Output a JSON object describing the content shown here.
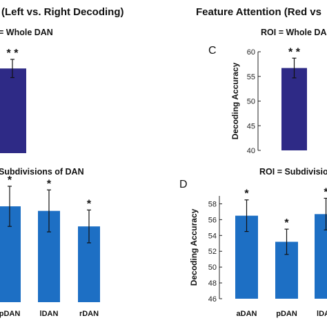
{
  "figure": {
    "left_title": "(Left vs. Right Decoding)",
    "right_title": "Feature Attention (Red vs"
  },
  "colors": {
    "dark_bar": "#2e2a86",
    "blue_bar": "#1d6fc4",
    "error": "#111111"
  },
  "chart_data": [
    {
      "id": "A",
      "type": "bar",
      "panel_label": "",
      "subtitle": "= Whole DAN",
      "ylabel": "",
      "yticks": [],
      "ylim": [
        40,
        60
      ],
      "categories": [
        ""
      ],
      "series": [
        {
          "values": [
            56.7
          ],
          "errors": [
            1.8
          ],
          "markers": [
            "* *"
          ]
        }
      ],
      "color": "#2e2a86"
    },
    {
      "id": "B",
      "type": "bar",
      "panel_label": "",
      "subtitle": "Subdivisions of DAN",
      "ylabel": "",
      "yticks": [],
      "ylim": [
        46,
        59
      ],
      "categories": [
        "pDAN",
        "lDAN",
        "rDAN"
      ],
      "series": [
        {
          "values": [
            56.5,
            56.0,
            54.3
          ],
          "errors": [
            2.2,
            2.3,
            1.8
          ],
          "markers": [
            "*",
            "*",
            "*"
          ]
        }
      ],
      "color": "#1d6fc4"
    },
    {
      "id": "C",
      "type": "bar",
      "panel_label": "C",
      "subtitle": "ROI = Whole DA",
      "ylabel": "Decoding Accuracy",
      "yticks": [
        "40",
        "45",
        "50",
        "55",
        "60"
      ],
      "ylim": [
        40,
        60
      ],
      "categories": [
        ""
      ],
      "series": [
        {
          "values": [
            56.7
          ],
          "errors": [
            2.0
          ],
          "markers": [
            "* *"
          ]
        }
      ],
      "color": "#2e2a86"
    },
    {
      "id": "D",
      "type": "bar",
      "panel_label": "D",
      "subtitle": "ROI = Subdivisions",
      "ylabel": "Decoding Accuracy",
      "yticks": [
        "46",
        "48",
        "50",
        "52",
        "54",
        "56",
        "58"
      ],
      "ylim": [
        46,
        59
      ],
      "categories": [
        "aDAN",
        "pDAN",
        "lDAN"
      ],
      "series": [
        {
          "values": [
            56.5,
            53.2,
            56.7
          ],
          "errors": [
            2.0,
            1.6,
            2.0
          ],
          "markers": [
            "*",
            "*",
            "*"
          ]
        }
      ],
      "color": "#1d6fc4"
    }
  ]
}
